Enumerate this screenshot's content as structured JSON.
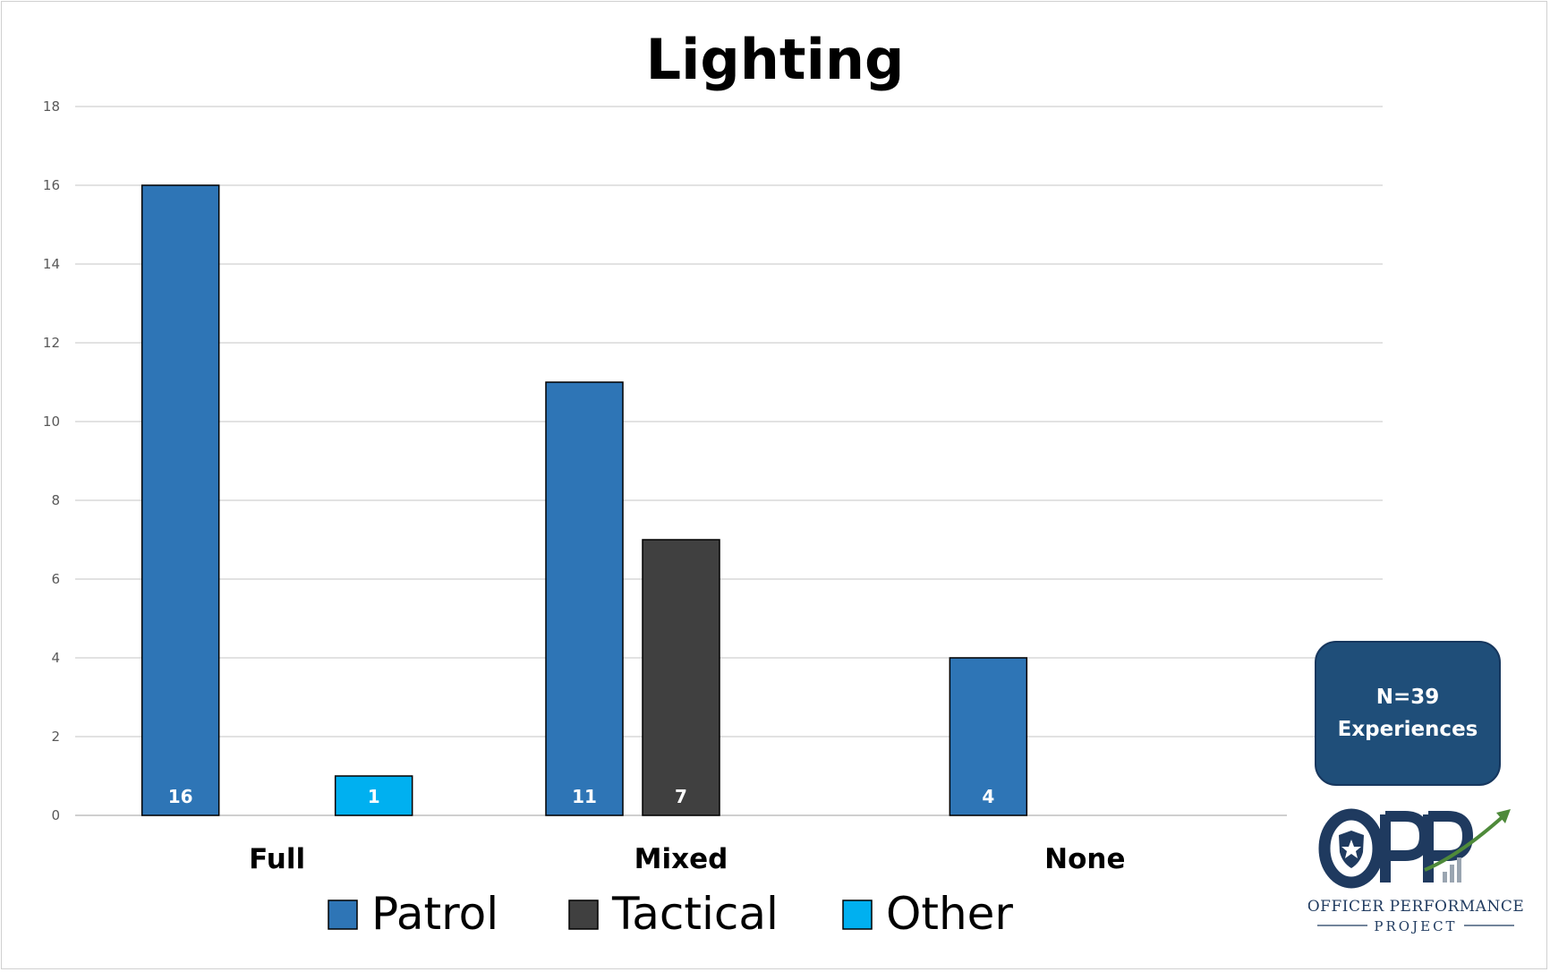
{
  "chart_data": {
    "type": "bar",
    "title": "Lighting",
    "categories": [
      "Full",
      "Mixed",
      "None"
    ],
    "series": [
      {
        "name": "Patrol",
        "color": "#2e75b6",
        "values": [
          16,
          11,
          4
        ]
      },
      {
        "name": "Tactical",
        "color": "#404040",
        "values": [
          0,
          7,
          0
        ]
      },
      {
        "name": "Other",
        "color": "#00b0f0",
        "values": [
          1,
          0,
          0
        ]
      }
    ],
    "ylim": [
      0,
      18
    ],
    "yticks": [
      0,
      2,
      4,
      6,
      8,
      10,
      12,
      14,
      16,
      18
    ],
    "grid": true,
    "legend": "bottom",
    "data_labels": true
  },
  "annotation": {
    "line1": "N=39",
    "line2": "Experiences",
    "color": "#1f4e79"
  },
  "logo": {
    "mark": "OPP",
    "name": "OFFICER PERFORMANCE",
    "subname": "PROJECT",
    "icons": [
      "police-badge-icon",
      "growth-arrow-icon"
    ]
  }
}
